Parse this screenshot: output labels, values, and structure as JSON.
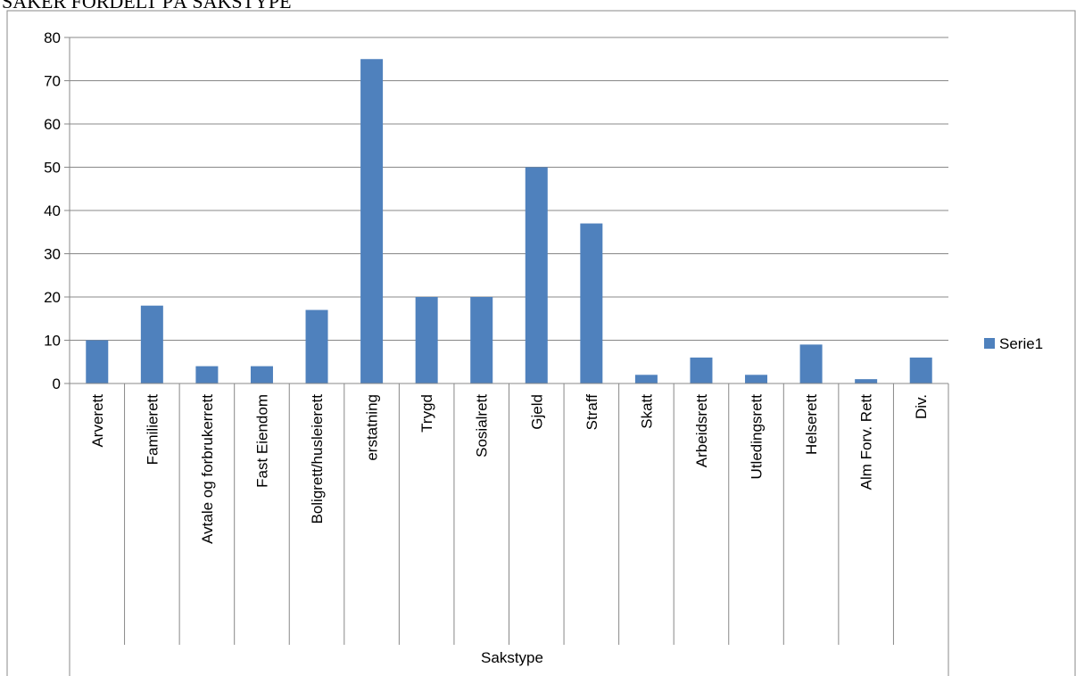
{
  "page": {
    "heading": "SAKER FORDELT PÅ SAKSTYPE"
  },
  "chart_data": {
    "type": "bar",
    "categories": [
      "Arverett",
      "Familierett",
      "Avtale og forbrukerrett",
      "Fast Eiendom",
      "Boligrett/husleierett",
      "erstatning",
      "Trygd",
      "Sosialrett",
      "Gjeld",
      "Straff",
      "Skatt",
      "Arbeidsrett",
      "Utledingsrett",
      "Helserett",
      "Alm Forv. Rett",
      "Div."
    ],
    "series": [
      {
        "name": "Serie1",
        "color": "#4f81bd",
        "values": [
          10,
          18,
          4,
          4,
          17,
          75,
          20,
          20,
          50,
          37,
          2,
          6,
          2,
          9,
          1,
          6
        ]
      }
    ],
    "title": "",
    "xlabel": "Sakstype",
    "ylabel": "",
    "ylim": [
      0,
      80
    ],
    "yticks": [
      0,
      10,
      20,
      30,
      40,
      50,
      60,
      70,
      80
    ],
    "grid": true,
    "legend_position": "right"
  }
}
